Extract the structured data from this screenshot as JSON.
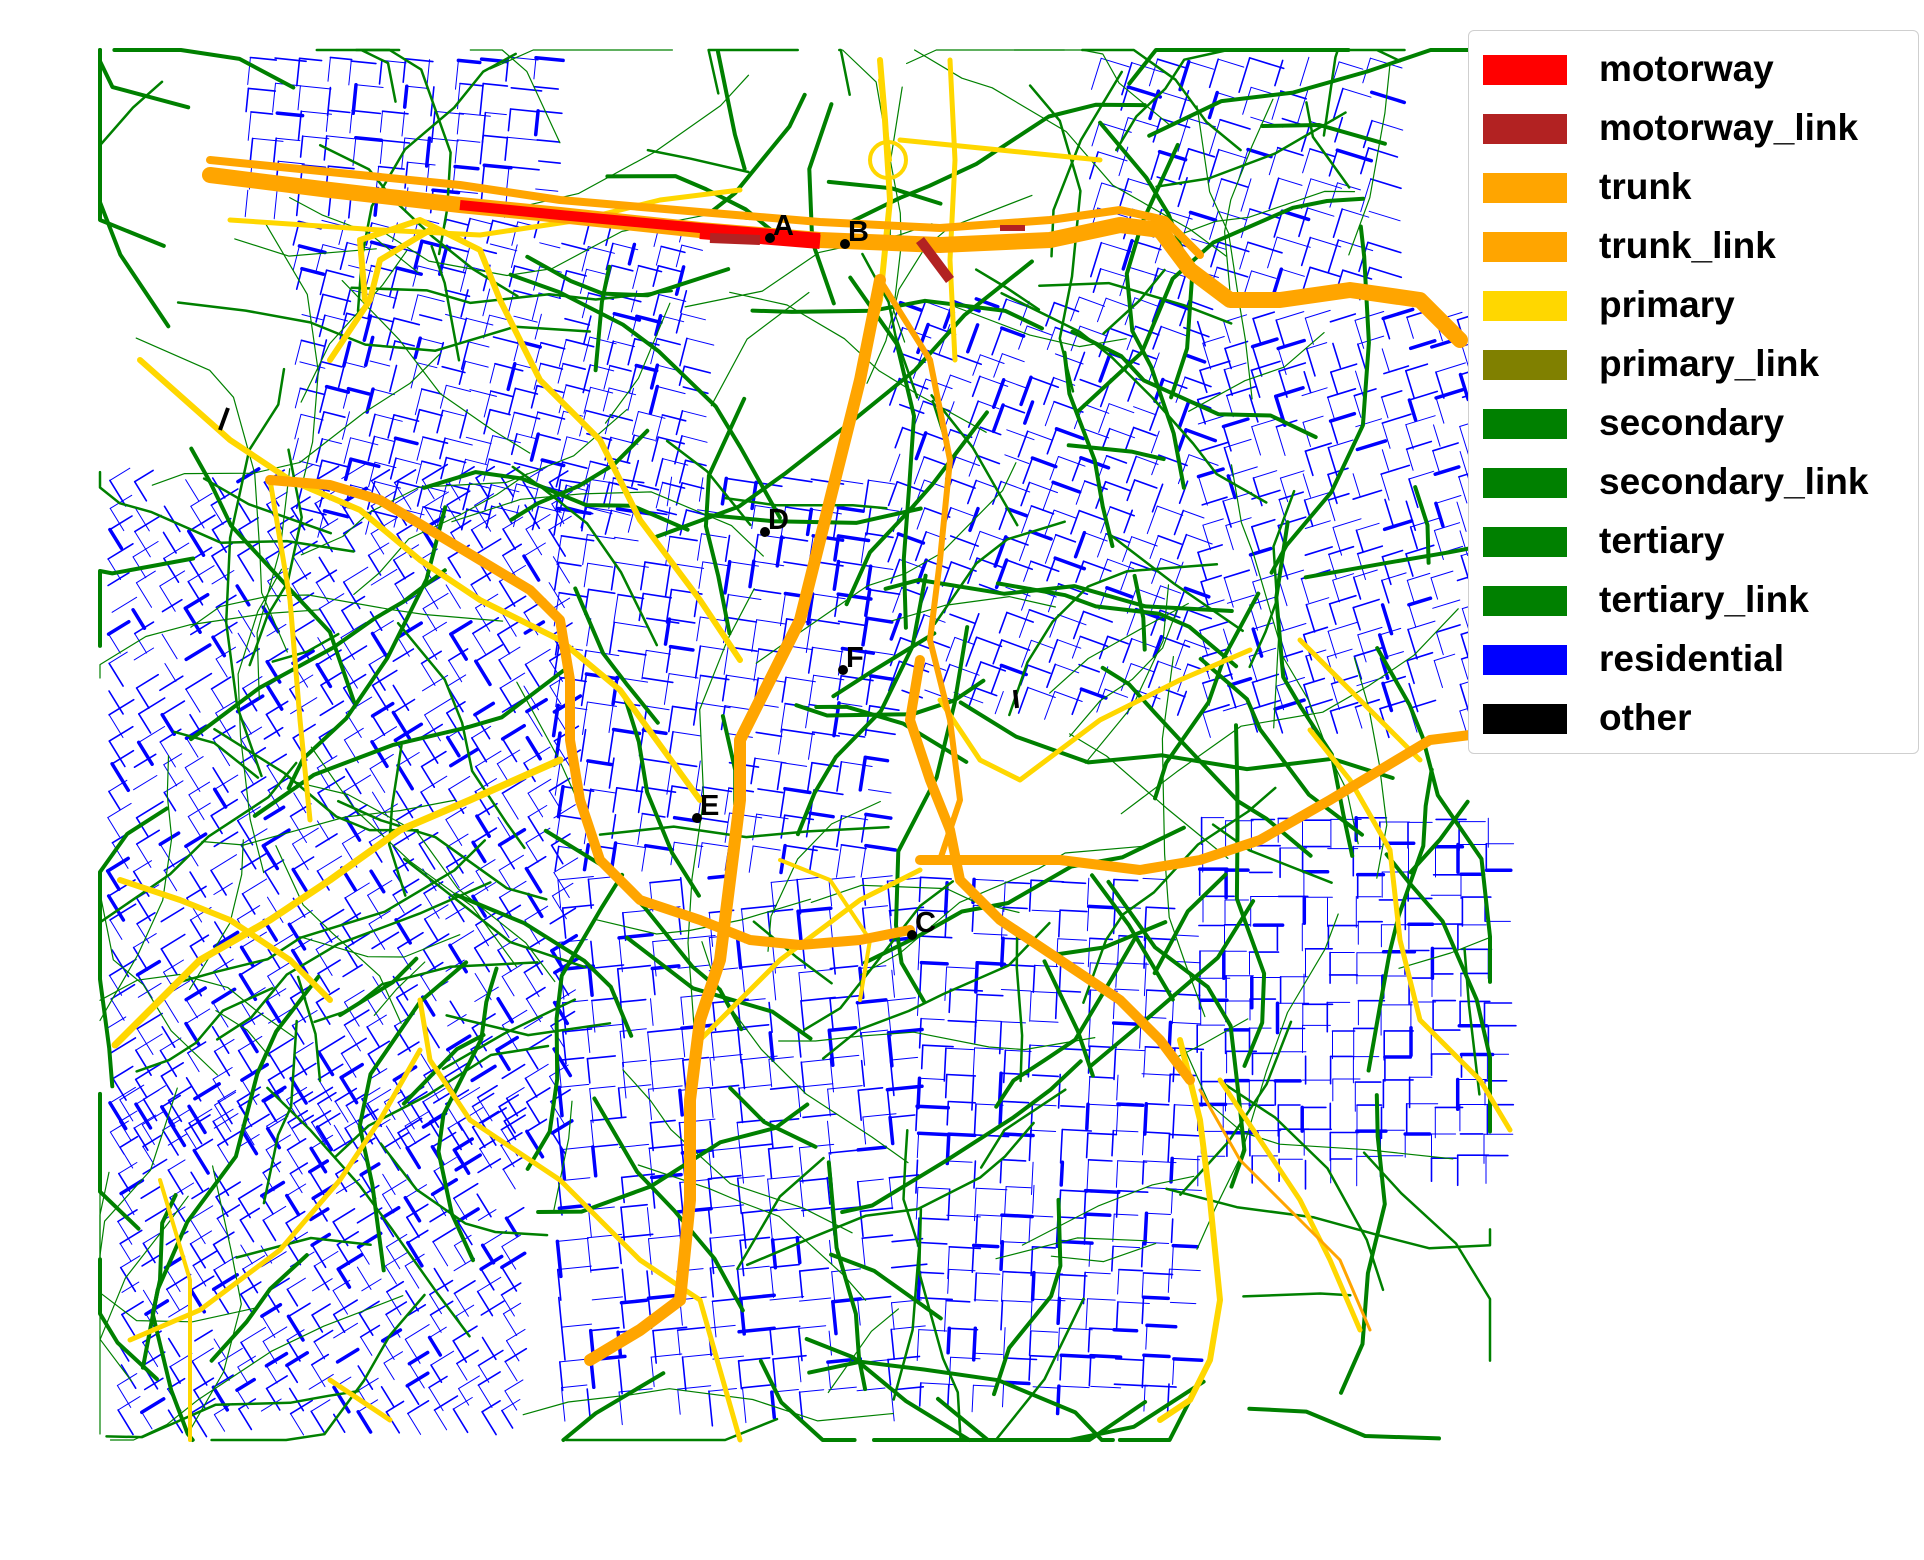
{
  "legend": {
    "items": [
      {
        "label": "motorway",
        "color": "#ff0000"
      },
      {
        "label": "motorway_link",
        "color": "#b22222"
      },
      {
        "label": "trunk",
        "color": "#ffa500"
      },
      {
        "label": "trunk_link",
        "color": "#ffa500"
      },
      {
        "label": "primary",
        "color": "#ffd700"
      },
      {
        "label": "primary_link",
        "color": "#808000"
      },
      {
        "label": "secondary",
        "color": "#008000"
      },
      {
        "label": "secondary_link",
        "color": "#008000"
      },
      {
        "label": "tertiary",
        "color": "#008000"
      },
      {
        "label": "tertiary_link",
        "color": "#008000"
      },
      {
        "label": "residential",
        "color": "#0000ff"
      },
      {
        "label": "other",
        "color": "#000000"
      }
    ]
  },
  "markers": [
    "A",
    "B",
    "C",
    "D",
    "E",
    "F"
  ]
}
